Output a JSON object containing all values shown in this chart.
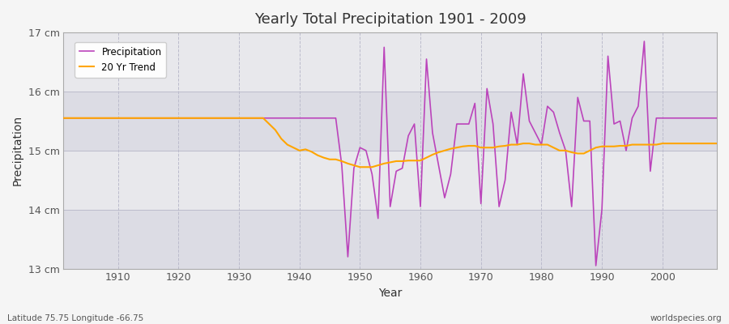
{
  "title": "Yearly Total Precipitation 1901 - 2009",
  "xlabel": "Year",
  "ylabel": "Precipitation",
  "subtitle_left": "Latitude 75.75 Longitude -66.75",
  "subtitle_right": "worldspecies.org",
  "legend_labels": [
    "Precipitation",
    "20 Yr Trend"
  ],
  "precip_color": "#bb44bb",
  "trend_color": "#ffa500",
  "bg_color": "#e8e8ec",
  "fig_color": "#f5f5f5",
  "band_colors": [
    "#dcdce4",
    "#e8e8ec"
  ],
  "ylim": [
    13.0,
    17.0
  ],
  "yticks": [
    13,
    14,
    15,
    16,
    17
  ],
  "ytick_labels": [
    "13 cm",
    "14 cm",
    "15 cm",
    "16 cm",
    "17 cm"
  ],
  "xticks": [
    1910,
    1920,
    1930,
    1940,
    1950,
    1960,
    1970,
    1980,
    1990,
    2000
  ],
  "years": [
    1901,
    1902,
    1903,
    1904,
    1905,
    1906,
    1907,
    1908,
    1909,
    1910,
    1911,
    1912,
    1913,
    1914,
    1915,
    1916,
    1917,
    1918,
    1919,
    1920,
    1921,
    1922,
    1923,
    1924,
    1925,
    1926,
    1927,
    1928,
    1929,
    1930,
    1931,
    1932,
    1933,
    1934,
    1935,
    1936,
    1937,
    1938,
    1939,
    1940,
    1941,
    1942,
    1943,
    1944,
    1945,
    1946,
    1947,
    1948,
    1949,
    1950,
    1951,
    1952,
    1953,
    1954,
    1955,
    1956,
    1957,
    1958,
    1959,
    1960,
    1961,
    1962,
    1963,
    1964,
    1965,
    1966,
    1967,
    1968,
    1969,
    1970,
    1971,
    1972,
    1973,
    1974,
    1975,
    1976,
    1977,
    1978,
    1979,
    1980,
    1981,
    1982,
    1983,
    1984,
    1985,
    1986,
    1987,
    1988,
    1989,
    1990,
    1991,
    1992,
    1993,
    1994,
    1995,
    1996,
    1997,
    1998,
    1999,
    2000,
    2001,
    2002,
    2003,
    2004,
    2005,
    2006,
    2007,
    2008,
    2009
  ],
  "precip": [
    15.55,
    15.55,
    15.55,
    15.55,
    15.55,
    15.55,
    15.55,
    15.55,
    15.55,
    15.55,
    15.55,
    15.55,
    15.55,
    15.55,
    15.55,
    15.55,
    15.55,
    15.55,
    15.55,
    15.55,
    15.55,
    15.55,
    15.55,
    15.55,
    15.55,
    15.55,
    15.55,
    15.55,
    15.55,
    15.55,
    15.55,
    15.55,
    15.55,
    15.55,
    15.55,
    15.55,
    15.55,
    15.55,
    15.55,
    15.55,
    15.55,
    15.55,
    15.55,
    15.55,
    15.55,
    15.55,
    14.75,
    13.2,
    14.7,
    15.05,
    15.0,
    14.6,
    13.85,
    16.75,
    14.05,
    14.65,
    14.7,
    15.25,
    15.45,
    14.05,
    16.55,
    15.3,
    14.75,
    14.2,
    14.6,
    15.45,
    15.45,
    15.45,
    15.8,
    14.1,
    16.05,
    15.45,
    14.05,
    14.5,
    15.65,
    15.1,
    16.3,
    15.5,
    15.3,
    15.1,
    15.75,
    15.65,
    15.3,
    15.0,
    14.05,
    15.9,
    15.5,
    15.5,
    13.05,
    14.0,
    16.6,
    15.45,
    15.5,
    15.0,
    15.55,
    15.75,
    16.85,
    14.65,
    15.55,
    15.55,
    15.55,
    15.55,
    15.55,
    15.55,
    15.55,
    15.55,
    15.55,
    15.55,
    15.55
  ],
  "trend": [
    15.55,
    15.55,
    15.55,
    15.55,
    15.55,
    15.55,
    15.55,
    15.55,
    15.55,
    15.55,
    15.55,
    15.55,
    15.55,
    15.55,
    15.55,
    15.55,
    15.55,
    15.55,
    15.55,
    15.55,
    15.55,
    15.55,
    15.55,
    15.55,
    15.55,
    15.55,
    15.55,
    15.55,
    15.55,
    15.55,
    15.55,
    15.55,
    15.55,
    15.55,
    15.45,
    15.35,
    15.2,
    15.1,
    15.05,
    15.0,
    15.02,
    14.98,
    14.92,
    14.88,
    14.85,
    14.85,
    14.82,
    14.78,
    14.75,
    14.72,
    14.72,
    14.72,
    14.75,
    14.78,
    14.8,
    14.82,
    14.82,
    14.83,
    14.83,
    14.83,
    14.88,
    14.93,
    14.97,
    15.0,
    15.03,
    15.05,
    15.07,
    15.08,
    15.08,
    15.05,
    15.05,
    15.05,
    15.07,
    15.08,
    15.1,
    15.1,
    15.12,
    15.12,
    15.1,
    15.1,
    15.1,
    15.05,
    15.0,
    15.0,
    14.97,
    14.95,
    14.95,
    15.0,
    15.05,
    15.07,
    15.07,
    15.07,
    15.08,
    15.08,
    15.1,
    15.1,
    15.1,
    15.1,
    15.1,
    15.12,
    15.12,
    15.12,
    15.12,
    15.12,
    15.12,
    15.12,
    15.12,
    15.12,
    15.12
  ]
}
